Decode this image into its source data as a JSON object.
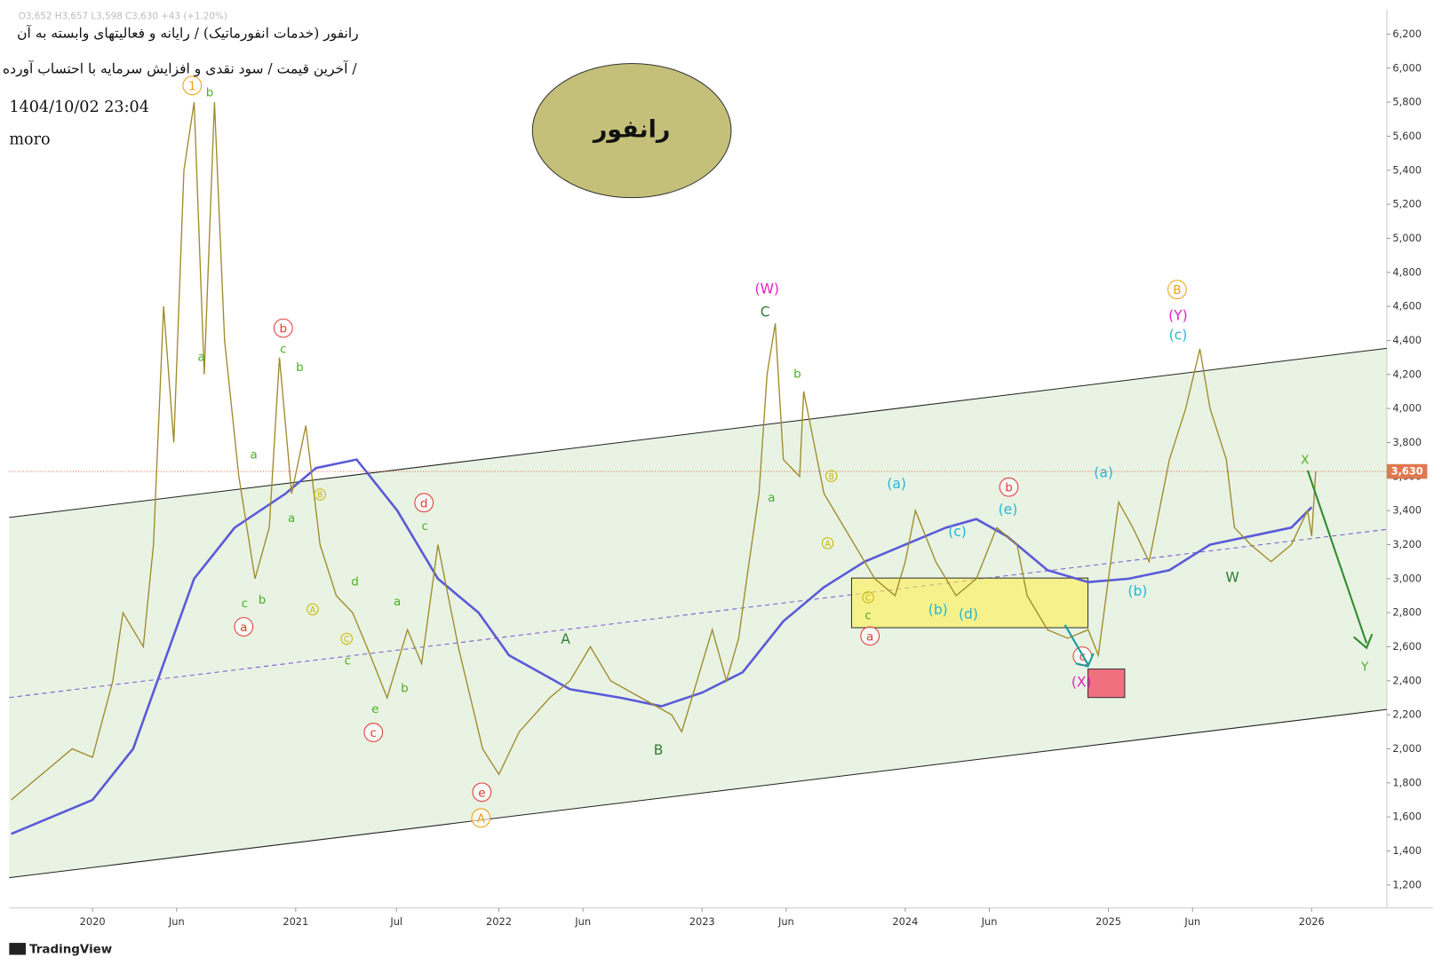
{
  "chart_data": {
    "type": "line",
    "symbol_line": "O3,652 H3,657 L3,598 C3,630 +43 (+1.20%)",
    "title": "رانفور (خدمات انفورماتیک) / رایانه و فعالیتهای وابسته به آن",
    "subtitle": "آخرین قیمت / سود نقدی و افزایش سرمایه با احتساب آورده /",
    "timestamp": "1404/10/02 23:04",
    "author": "moro",
    "badge": "رانفور",
    "brand": "TradingView",
    "xlim": [
      2019.59,
      2026.37
    ],
    "ylim": [
      1065,
      6346
    ],
    "grid": false,
    "xticks": [
      {
        "value": 2020,
        "label": "2020"
      },
      {
        "value": 2020.414,
        "label": "Jun"
      },
      {
        "value": 2021,
        "label": "2021"
      },
      {
        "value": 2021.496,
        "label": "Jul"
      },
      {
        "value": 2022,
        "label": "2022"
      },
      {
        "value": 2022.414,
        "label": "Jun"
      },
      {
        "value": 2023,
        "label": "2023"
      },
      {
        "value": 2023.414,
        "label": "Jun"
      },
      {
        "value": 2024,
        "label": "2024"
      },
      {
        "value": 2024.414,
        "label": "Jun"
      },
      {
        "value": 2025,
        "label": "2025"
      },
      {
        "value": 2025.414,
        "label": "Jun"
      },
      {
        "value": 2026,
        "label": "2026"
      }
    ],
    "yticks": [
      {
        "value": 1200,
        "label": "1,200"
      },
      {
        "value": 1400,
        "label": "1,400"
      },
      {
        "value": 1600,
        "label": "1,600"
      },
      {
        "value": 1800,
        "label": "1,800"
      },
      {
        "value": 2000,
        "label": "2,000"
      },
      {
        "value": 2200,
        "label": "2,200"
      },
      {
        "value": 2400,
        "label": "2,400"
      },
      {
        "value": 2600,
        "label": "2,600"
      },
      {
        "value": 2800,
        "label": "2,800"
      },
      {
        "value": 3000,
        "label": "3,000"
      },
      {
        "value": 3200,
        "label": "3,200"
      },
      {
        "value": 3400,
        "label": "3,400"
      },
      {
        "value": 3600,
        "label": "3,600"
      },
      {
        "value": 3800,
        "label": "3,800"
      },
      {
        "value": 4000,
        "label": "4,000"
      },
      {
        "value": 4200,
        "label": "4,200"
      },
      {
        "value": 4400,
        "label": "4,400"
      },
      {
        "value": 4600,
        "label": "4,600"
      },
      {
        "value": 4800,
        "label": "4,800"
      },
      {
        "value": 5000,
        "label": "5,000"
      },
      {
        "value": 5200,
        "label": "5,200"
      },
      {
        "value": 5400,
        "label": "5,400"
      },
      {
        "value": 5600,
        "label": "5,600"
      },
      {
        "value": 5800,
        "label": "5,800"
      },
      {
        "value": 6000,
        "label": "6,000"
      },
      {
        "value": 6200,
        "label": "6,200"
      }
    ],
    "last_price": {
      "value": 3630,
      "label": "3,630"
    },
    "series": [
      {
        "name": "price",
        "color": "#a08a2a",
        "x": [
          2019.6,
          2019.75,
          2019.9,
          2020.0,
          2020.1,
          2020.15,
          2020.25,
          2020.3,
          2020.35,
          2020.4,
          2020.45,
          2020.5,
          2020.55,
          2020.6,
          2020.65,
          2020.72,
          2020.8,
          2020.87,
          2020.92,
          2020.98,
          2021.05,
          2021.12,
          2021.2,
          2021.28,
          2021.35,
          2021.45,
          2021.55,
          2021.62,
          2021.7,
          2021.8,
          2021.92,
          2022.0,
          2022.1,
          2022.25,
          2022.35,
          2022.45,
          2022.55,
          2022.7,
          2022.85,
          2022.9,
          2022.95,
          2023.05,
          2023.12,
          2023.18,
          2023.22,
          2023.28,
          2023.32,
          2023.36,
          2023.4,
          2023.48,
          2023.5,
          2023.6,
          2023.75,
          2023.85,
          2023.95,
          2024.0,
          2024.05,
          2024.15,
          2024.25,
          2024.35,
          2024.45,
          2024.55,
          2024.6,
          2024.7,
          2024.8,
          2024.9,
          2024.95,
          2025.0,
          2025.05,
          2025.12,
          2025.2,
          2025.3,
          2025.38,
          2025.45,
          2025.5,
          2025.58,
          2025.62,
          2025.7,
          2025.8,
          2025.9,
          2025.98,
          2026.0,
          2026.02
        ],
        "values": [
          1700,
          1850,
          2000,
          1950,
          2400,
          2800,
          2600,
          3200,
          4600,
          3800,
          5400,
          5800,
          4200,
          5800,
          4400,
          3600,
          3000,
          3300,
          4300,
          3500,
          3900,
          3200,
          2900,
          2800,
          2600,
          2300,
          2700,
          2500,
          3200,
          2600,
          2000,
          1850,
          2100,
          2300,
          2400,
          2600,
          2400,
          2300,
          2200,
          2100,
          2300,
          2700,
          2400,
          2650,
          3000,
          3500,
          4200,
          4500,
          3700,
          3600,
          4100,
          3500,
          3200,
          3000,
          2900,
          3100,
          3400,
          3100,
          2900,
          3000,
          3300,
          3200,
          2900,
          2700,
          2650,
          2700,
          2550,
          3000,
          3450,
          3300,
          3100,
          3700,
          4000,
          4350,
          4000,
          3700,
          3300,
          3200,
          3100,
          3200,
          3400,
          3250,
          3630
        ]
      },
      {
        "name": "moving average",
        "color": "#5a5ad8",
        "x": [
          2019.6,
          2020.0,
          2020.2,
          2020.35,
          2020.5,
          2020.7,
          2020.95,
          2021.1,
          2021.3,
          2021.5,
          2021.7,
          2021.9,
          2022.05,
          2022.2,
          2022.35,
          2022.6,
          2022.8,
          2023.0,
          2023.2,
          2023.4,
          2023.6,
          2023.8,
          2024.0,
          2024.2,
          2024.35,
          2024.5,
          2024.7,
          2024.9,
          2025.1,
          2025.3,
          2025.5,
          2025.7,
          2025.9,
          2026.0
        ],
        "values": [
          1500,
          1700,
          2000,
          2500,
          3000,
          3300,
          3500,
          3650,
          3700,
          3400,
          3000,
          2800,
          2550,
          2450,
          2350,
          2300,
          2250,
          2330,
          2450,
          2750,
          2950,
          3100,
          3200,
          3300,
          3350,
          3250,
          3050,
          2980,
          3000,
          3050,
          3200,
          3250,
          3300,
          3420
        ]
      }
    ],
    "annotations": [
      "1",
      "b",
      "a",
      "b",
      "c",
      "b",
      "a",
      "a",
      "B",
      "c",
      "b",
      "a",
      "A",
      "d",
      "C",
      "c",
      "e",
      "c",
      "a",
      "b",
      "d",
      "c",
      "e",
      "A",
      "A",
      "B",
      "(W)",
      "C",
      "b",
      "a",
      "B",
      "A",
      "C",
      "c",
      "a",
      "(a)",
      "(b)",
      "(c)",
      "(d)",
      "b",
      "(e)",
      "(a)",
      "(b)",
      "B",
      "(Y)",
      "(c)",
      "c",
      "(X)",
      "W",
      "X",
      "Y"
    ]
  }
}
